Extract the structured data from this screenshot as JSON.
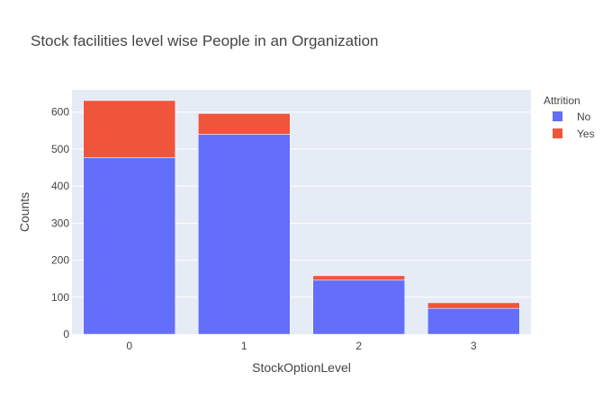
{
  "chart_data": {
    "type": "bar",
    "stacked": true,
    "title": "Stock facilities level wise People in an Organization",
    "xlabel": "StockOptionLevel",
    "ylabel": "Counts",
    "categories": [
      "0",
      "1",
      "2",
      "3"
    ],
    "series": [
      {
        "name": "No",
        "color": "#636efa",
        "values": [
          477,
          540,
          146,
          70
        ]
      },
      {
        "name": "Yes",
        "color": "#ef553b",
        "values": [
          154,
          56,
          12,
          15
        ]
      }
    ],
    "ylim": [
      0,
      660
    ],
    "yticks": [
      0,
      100,
      200,
      300,
      400,
      500,
      600
    ],
    "grid": true,
    "legend": {
      "title": "Attrition",
      "placement": "top-right"
    },
    "plot_background": "#e5ecf6"
  }
}
